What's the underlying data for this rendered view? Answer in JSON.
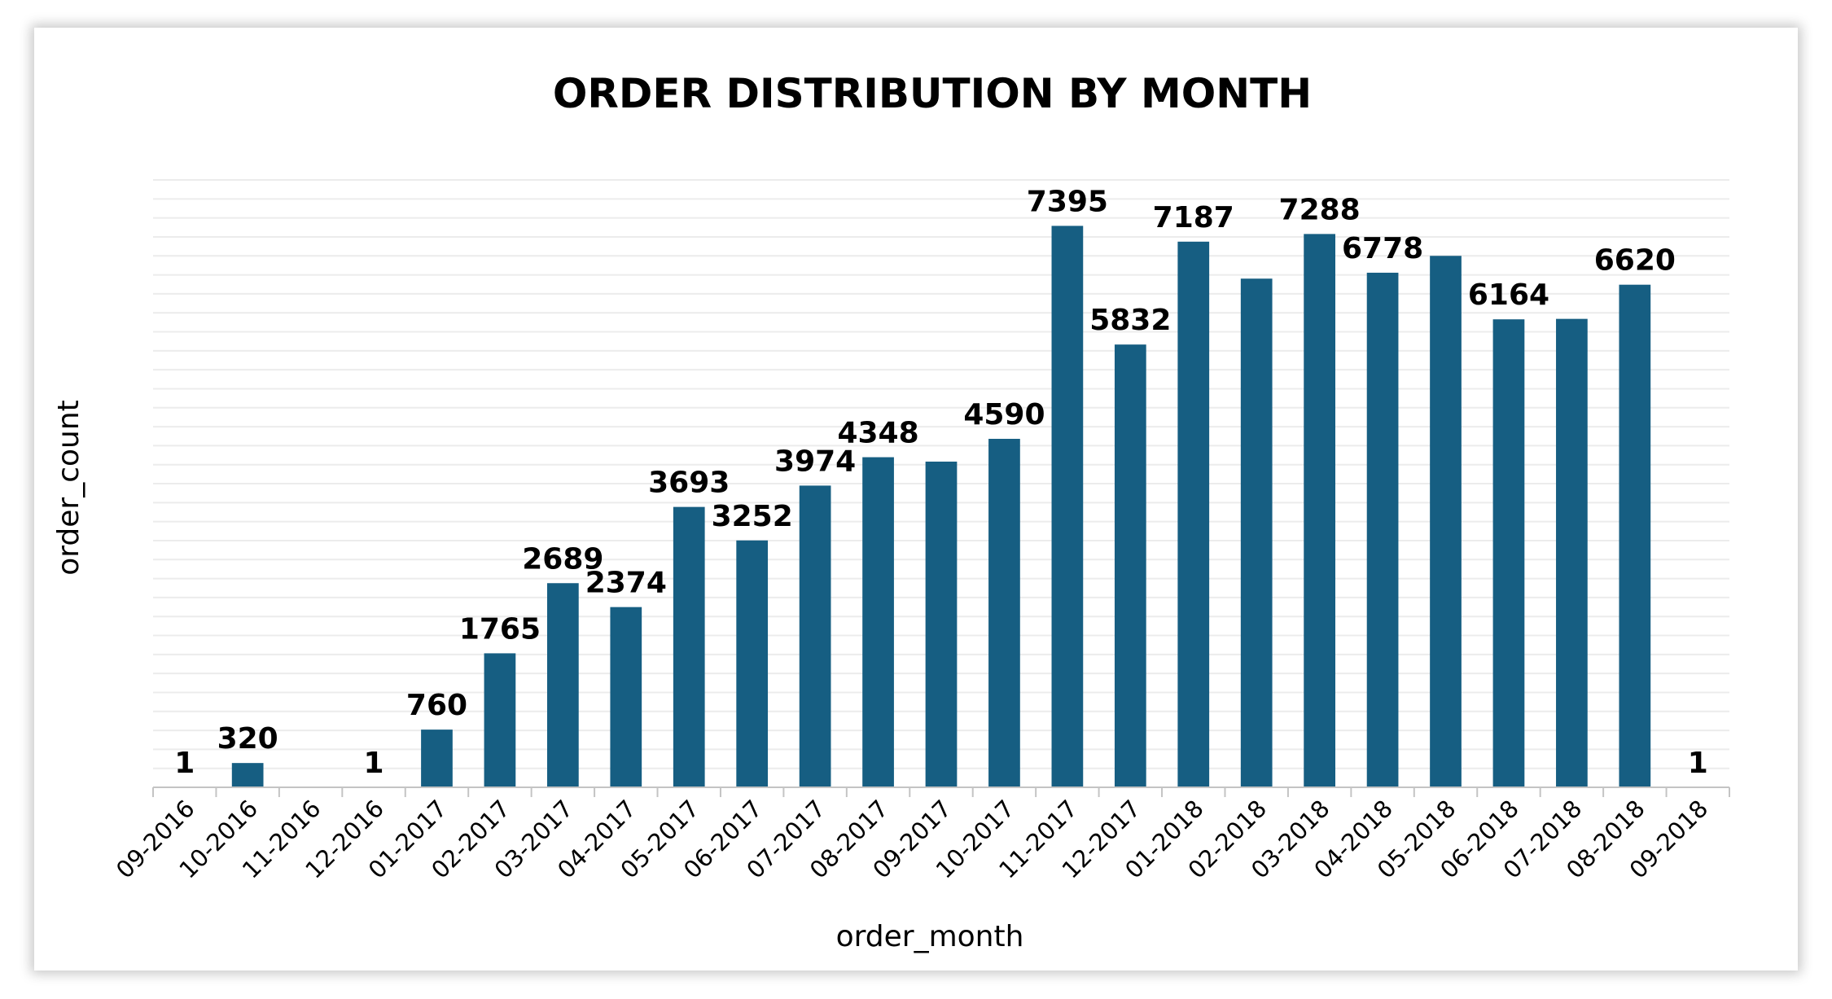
{
  "chart_data": {
    "type": "bar",
    "title": "ORDER DISTRIBUTION BY MONTH",
    "xlabel": "order_month",
    "ylabel": "order_count",
    "categories": [
      "09-2016",
      "10-2016",
      "11-2016",
      "12-2016",
      "01-2017",
      "02-2017",
      "03-2017",
      "04-2017",
      "05-2017",
      "06-2017",
      "07-2017",
      "08-2017",
      "09-2017",
      "10-2017",
      "11-2017",
      "12-2017",
      "01-2018",
      "02-2018",
      "03-2018",
      "04-2018",
      "05-2018",
      "06-2018",
      "07-2018",
      "08-2018",
      "09-2018"
    ],
    "values": [
      1,
      320,
      0,
      1,
      760,
      1765,
      2689,
      2374,
      3693,
      3252,
      3974,
      4348,
      4290,
      4590,
      7395,
      5832,
      7187,
      6700,
      7288,
      6778,
      7000,
      6164,
      6170,
      6620,
      1
    ],
    "data_labels": [
      "1",
      "320",
      "",
      "1",
      "760",
      "1765",
      "2689",
      "2374",
      "3693",
      "3252",
      "3974",
      "4348",
      "",
      "4590",
      "7395",
      "5832",
      "7187",
      "",
      "7288",
      "6778",
      "",
      "6164",
      "",
      "6620",
      "1"
    ],
    "ylim": [
      0,
      8000
    ],
    "grid": true,
    "legend": "none",
    "bar_color": "#165e82"
  }
}
